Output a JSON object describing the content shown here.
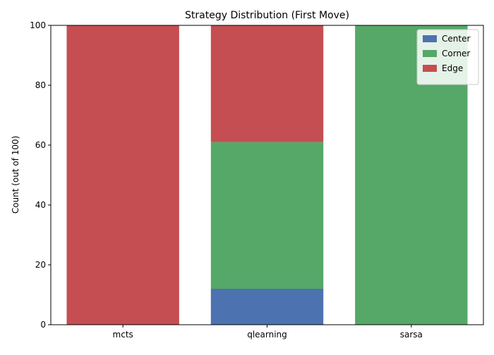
{
  "chart_data": {
    "type": "bar",
    "stacked": true,
    "title": "Strategy Distribution (First Move)",
    "xlabel": "",
    "ylabel": "Count (out of 100)",
    "ylim": [
      0,
      100
    ],
    "yticks": [
      0,
      20,
      40,
      60,
      80,
      100
    ],
    "categories": [
      "mcts",
      "qlearning",
      "sarsa"
    ],
    "grid": false,
    "legend_position": "top-right",
    "series": [
      {
        "name": "Center",
        "color": "#4c72b0",
        "values": [
          0,
          12,
          0
        ]
      },
      {
        "name": "Corner",
        "color": "#55a868",
        "values": [
          0,
          49,
          100
        ]
      },
      {
        "name": "Edge",
        "color": "#c44e52",
        "values": [
          100,
          39,
          0
        ]
      }
    ]
  }
}
